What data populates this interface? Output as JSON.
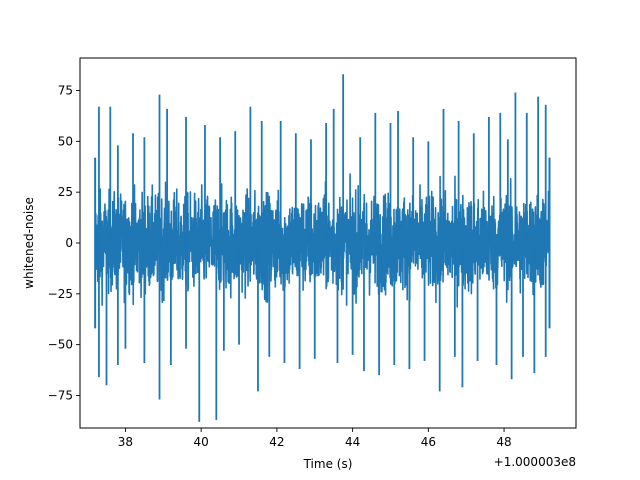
{
  "chart_data": {
    "type": "line",
    "title": "",
    "xlabel": "Time (s)",
    "ylabel": "whitened-noise",
    "x_offset_label": "+1.000003e8",
    "xlim": [
      36.8,
      49.9
    ],
    "ylim": [
      -91,
      91
    ],
    "x_ticks": [
      38,
      40,
      42,
      44,
      46,
      48
    ],
    "x_tick_labels": [
      "38",
      "40",
      "42",
      "44",
      "46",
      "48"
    ],
    "y_ticks": [
      -75,
      -50,
      -25,
      0,
      25,
      50,
      75
    ],
    "y_tick_labels": [
      "−75",
      "−50",
      "−25",
      "0",
      "25",
      "50",
      "75"
    ],
    "grid": false,
    "line_color": "#1f77b4",
    "series": [
      {
        "x_range": [
          37.2,
          49.2
        ],
        "typical_band": [
          -40,
          40
        ],
        "peaks": [
          {
            "x": 37.3,
            "y": 67
          },
          {
            "x": 37.6,
            "y": 67
          },
          {
            "x": 37.8,
            "y": 48
          },
          {
            "x": 38.2,
            "y": 54
          },
          {
            "x": 38.5,
            "y": 52
          },
          {
            "x": 38.9,
            "y": 73
          },
          {
            "x": 39.1,
            "y": 66
          },
          {
            "x": 39.6,
            "y": 62
          },
          {
            "x": 40.1,
            "y": 58
          },
          {
            "x": 40.5,
            "y": 52
          },
          {
            "x": 40.9,
            "y": 55
          },
          {
            "x": 41.3,
            "y": 67
          },
          {
            "x": 41.6,
            "y": 60
          },
          {
            "x": 42.1,
            "y": 60
          },
          {
            "x": 42.5,
            "y": 54
          },
          {
            "x": 42.9,
            "y": 51
          },
          {
            "x": 43.3,
            "y": 59
          },
          {
            "x": 43.5,
            "y": 66
          },
          {
            "x": 43.75,
            "y": 83
          },
          {
            "x": 44.2,
            "y": 52
          },
          {
            "x": 44.6,
            "y": 64
          },
          {
            "x": 45.0,
            "y": 59
          },
          {
            "x": 45.2,
            "y": 65
          },
          {
            "x": 45.6,
            "y": 52
          },
          {
            "x": 46.0,
            "y": 50
          },
          {
            "x": 46.4,
            "y": 66
          },
          {
            "x": 46.8,
            "y": 60
          },
          {
            "x": 47.2,
            "y": 54
          },
          {
            "x": 47.6,
            "y": 62
          },
          {
            "x": 47.9,
            "y": 64
          },
          {
            "x": 48.1,
            "y": 51
          },
          {
            "x": 48.3,
            "y": 74
          },
          {
            "x": 48.6,
            "y": 64
          },
          {
            "x": 48.9,
            "y": 72
          },
          {
            "x": 49.1,
            "y": 68
          }
        ],
        "troughs": [
          {
            "x": 37.3,
            "y": -66
          },
          {
            "x": 37.5,
            "y": -70
          },
          {
            "x": 37.8,
            "y": -60
          },
          {
            "x": 38.0,
            "y": -52
          },
          {
            "x": 38.5,
            "y": -59
          },
          {
            "x": 38.9,
            "y": -77
          },
          {
            "x": 39.2,
            "y": -60
          },
          {
            "x": 39.6,
            "y": -52
          },
          {
            "x": 39.95,
            "y": -88
          },
          {
            "x": 40.4,
            "y": -87
          },
          {
            "x": 40.6,
            "y": -53
          },
          {
            "x": 41.0,
            "y": -50
          },
          {
            "x": 41.5,
            "y": -73
          },
          {
            "x": 41.8,
            "y": -56
          },
          {
            "x": 42.2,
            "y": -59
          },
          {
            "x": 42.6,
            "y": -62
          },
          {
            "x": 43.0,
            "y": -57
          },
          {
            "x": 43.6,
            "y": -59
          },
          {
            "x": 44.0,
            "y": -55
          },
          {
            "x": 44.3,
            "y": -63
          },
          {
            "x": 44.7,
            "y": -65
          },
          {
            "x": 45.1,
            "y": -60
          },
          {
            "x": 45.5,
            "y": -62
          },
          {
            "x": 45.9,
            "y": -58
          },
          {
            "x": 46.3,
            "y": -73
          },
          {
            "x": 46.7,
            "y": -56
          },
          {
            "x": 46.9,
            "y": -71
          },
          {
            "x": 47.3,
            "y": -58
          },
          {
            "x": 47.8,
            "y": -60
          },
          {
            "x": 48.2,
            "y": -67
          },
          {
            "x": 48.5,
            "y": -56
          },
          {
            "x": 48.8,
            "y": -64
          },
          {
            "x": 49.1,
            "y": -56
          }
        ]
      }
    ]
  }
}
